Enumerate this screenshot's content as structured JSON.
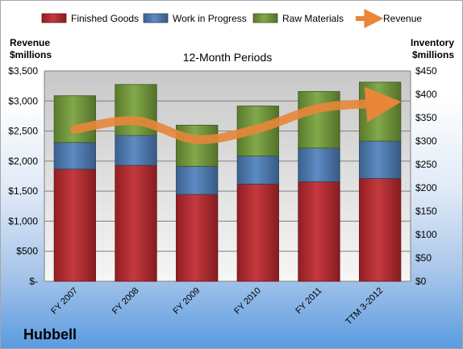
{
  "company": "Hubbell",
  "chart_data": {
    "type": "bar",
    "stacked": true,
    "title": "12-Month Periods",
    "ylabel_left": "Revenue\n$millions",
    "ylabel_right": "Inventory\n$millions",
    "categories": [
      "FY 2007",
      "FY 2008",
      "FY 2009",
      "FY 2010",
      "FY 2011",
      "TTM 3-2012"
    ],
    "series": [
      {
        "name": "Finished Goods",
        "axis": "right",
        "color": "#c0282d",
        "values": [
          240,
          248,
          186,
          208,
          213,
          220
        ]
      },
      {
        "name": "Work in Progress",
        "axis": "right",
        "color": "#4f81bd",
        "values": [
          57,
          64,
          60,
          60,
          72,
          80
        ]
      },
      {
        "name": "Raw Materials",
        "axis": "right",
        "color": "#77a23a",
        "values": [
          100,
          109,
          88,
          107,
          121,
          126
        ]
      }
    ],
    "line_series": {
      "name": "Revenue",
      "axis": "left",
      "color": "#e8863a",
      "values": [
        2530,
        2670,
        2360,
        2540,
        2880,
        2960
      ]
    },
    "left_axis": {
      "min": 0,
      "max": 3500,
      "ticks": [
        "$-",
        "$500",
        "$1,000",
        "$1,500",
        "$2,000",
        "$2,500",
        "$3,000",
        "$3,500"
      ]
    },
    "right_axis": {
      "min": 0,
      "max": 450,
      "ticks": [
        "$0",
        "$50",
        "$100",
        "$150",
        "$200",
        "$250",
        "$300",
        "$350",
        "$400",
        "$450"
      ]
    },
    "grid": true,
    "legend": "top"
  }
}
